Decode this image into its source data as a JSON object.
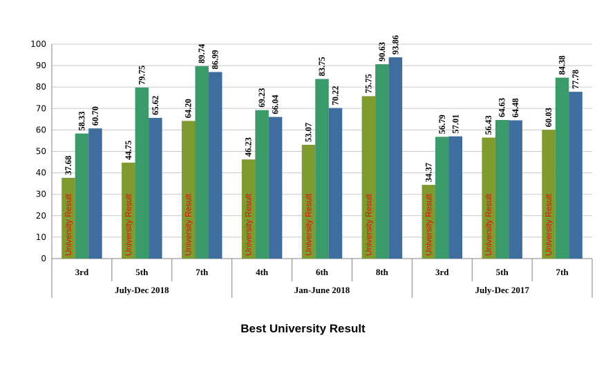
{
  "chart_data": {
    "type": "bar",
    "title": "Best University Result",
    "ylim": [
      0,
      100
    ],
    "yticks": [
      0,
      10,
      20,
      30,
      40,
      50,
      60,
      70,
      80,
      90,
      100
    ],
    "grid": true,
    "bar_inner_label": "University Result",
    "groups": [
      {
        "name": "July-Dec 2018",
        "categories": [
          "3rd",
          "5th",
          "7th"
        ]
      },
      {
        "name": "Jan-June 2018",
        "categories": [
          "4th",
          "6th",
          "8th"
        ]
      },
      {
        "name": "July-Dec 2017",
        "categories": [
          "3rd",
          "5th",
          "7th"
        ]
      }
    ],
    "categories": [
      "3rd",
      "5th",
      "7th",
      "4th",
      "6th",
      "8th",
      "3rd",
      "5th",
      "7th"
    ],
    "series": [
      {
        "color": "#7f9a2f",
        "values": [
          37.68,
          44.75,
          64.2,
          46.23,
          53.07,
          75.75,
          34.37,
          56.43,
          60.03
        ]
      },
      {
        "color": "#3a9a6a",
        "values": [
          58.33,
          79.75,
          89.74,
          69.23,
          83.75,
          90.63,
          56.79,
          64.63,
          84.38
        ]
      },
      {
        "color": "#3f6e9e",
        "values": [
          60.7,
          65.62,
          86.99,
          66.04,
          70.22,
          93.86,
          57.01,
          64.48,
          77.78
        ]
      }
    ],
    "value_labels": [
      [
        "37.68",
        "44.75",
        "64.20",
        "46.23",
        "53.07",
        "75.75",
        "34.37",
        "56.43",
        "60.03"
      ],
      [
        "58.33",
        "79.75",
        "89.74",
        "69.23",
        "83.75",
        "90.63",
        "56.79",
        "64.63",
        "84.38"
      ],
      [
        "60.70",
        "65.62",
        "86.99",
        "66.04",
        "70.22",
        "93.86",
        "57.01",
        "64.48",
        "77.78"
      ]
    ]
  }
}
